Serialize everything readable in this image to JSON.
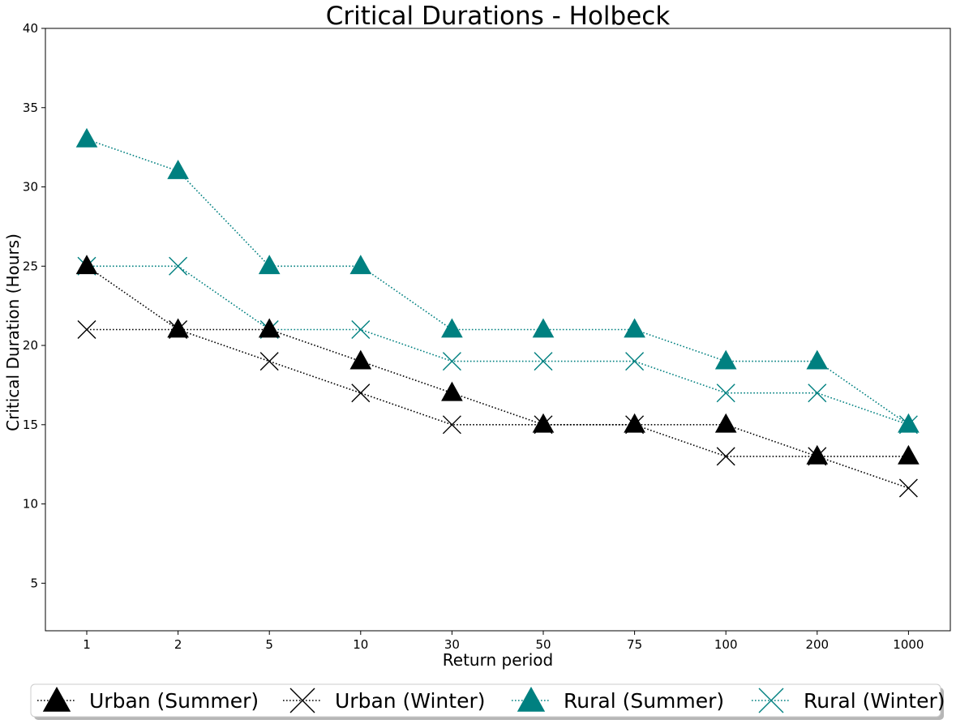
{
  "chart_data": {
    "type": "line",
    "title": "Critical Durations - Holbeck",
    "xlabel": "Return period",
    "ylabel": "Critical Duration (Hours)",
    "categories": [
      "1",
      "2",
      "5",
      "10",
      "30",
      "50",
      "75",
      "100",
      "200",
      "1000"
    ],
    "ylim": [
      2,
      40
    ],
    "yticks": [
      5,
      10,
      15,
      20,
      25,
      30,
      35,
      40
    ],
    "grid": false,
    "legend_position": "bottom",
    "series": [
      {
        "name": "Urban (Summer)",
        "values": [
          25,
          21,
          21,
          19,
          17,
          15,
          15,
          15,
          13,
          13
        ],
        "color": "#000000",
        "marker": "triangle",
        "line": "dotted"
      },
      {
        "name": "Urban (Winter)",
        "values": [
          21,
          21,
          19,
          17,
          15,
          15,
          15,
          13,
          13,
          11
        ],
        "color": "#000000",
        "marker": "x",
        "line": "dotted"
      },
      {
        "name": "Rural (Summer)",
        "values": [
          33,
          31,
          25,
          25,
          21,
          21,
          21,
          19,
          19,
          15
        ],
        "color": "#008080",
        "marker": "triangle",
        "line": "dotted"
      },
      {
        "name": "Rural (Winter)",
        "values": [
          25,
          25,
          21,
          21,
          19,
          19,
          19,
          17,
          17,
          15
        ],
        "color": "#008080",
        "marker": "x",
        "line": "dotted"
      }
    ]
  }
}
